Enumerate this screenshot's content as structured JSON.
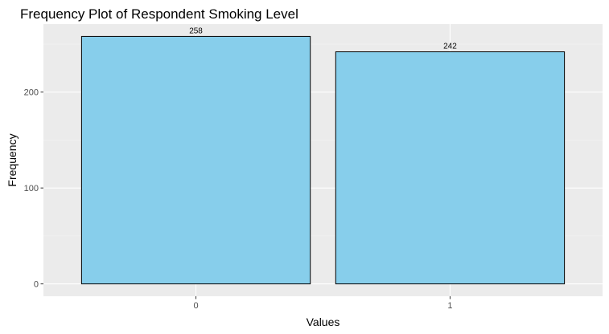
{
  "chart_data": {
    "type": "bar",
    "title": "Frequency Plot of Respondent Smoking Level",
    "xlabel": "Values",
    "ylabel": "Frequency",
    "categories": [
      "0",
      "1"
    ],
    "values": [
      258,
      242
    ],
    "data_labels": [
      "258",
      "242"
    ],
    "y_ticks": [
      0,
      100,
      200
    ],
    "y_tick_labels": [
      "0",
      "100",
      "200"
    ],
    "ylim": [
      -12.9,
      270.9
    ],
    "grid": true,
    "legend": "none",
    "colors": {
      "bar_fill": "#87CEEB",
      "bar_stroke": "#000000",
      "panel_background": "#EBEBEB",
      "grid_major": "#FFFFFF",
      "grid_minor": "#F5F5F5",
      "tick_mark": "#333333"
    }
  }
}
